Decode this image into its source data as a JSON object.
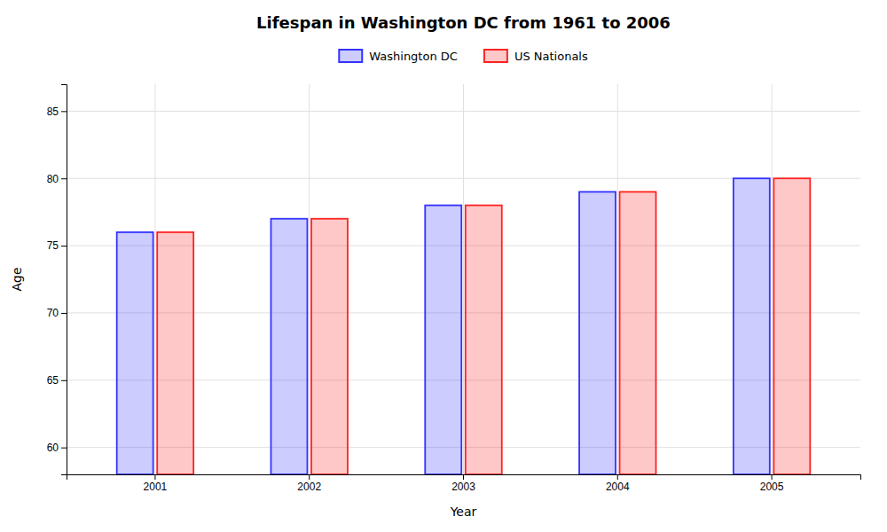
{
  "chart_data": {
    "type": "bar",
    "title": "Lifespan in Washington DC from 1961 to 2006",
    "x_label": "Year",
    "y_label": "Age",
    "categories": [
      "2001",
      "2002",
      "2003",
      "2004",
      "2005"
    ],
    "series": [
      {
        "name": "Washington DC",
        "color": "#3333ff",
        "values": [
          76,
          77,
          78,
          79,
          80
        ]
      },
      {
        "name": "US Nationals",
        "color": "#ff2222",
        "values": [
          76,
          77,
          78,
          79,
          80
        ]
      }
    ],
    "ylim": [
      58,
      87
    ],
    "yticks": [
      60,
      65,
      70,
      75,
      80,
      85
    ],
    "grid": true,
    "legend": "top"
  }
}
